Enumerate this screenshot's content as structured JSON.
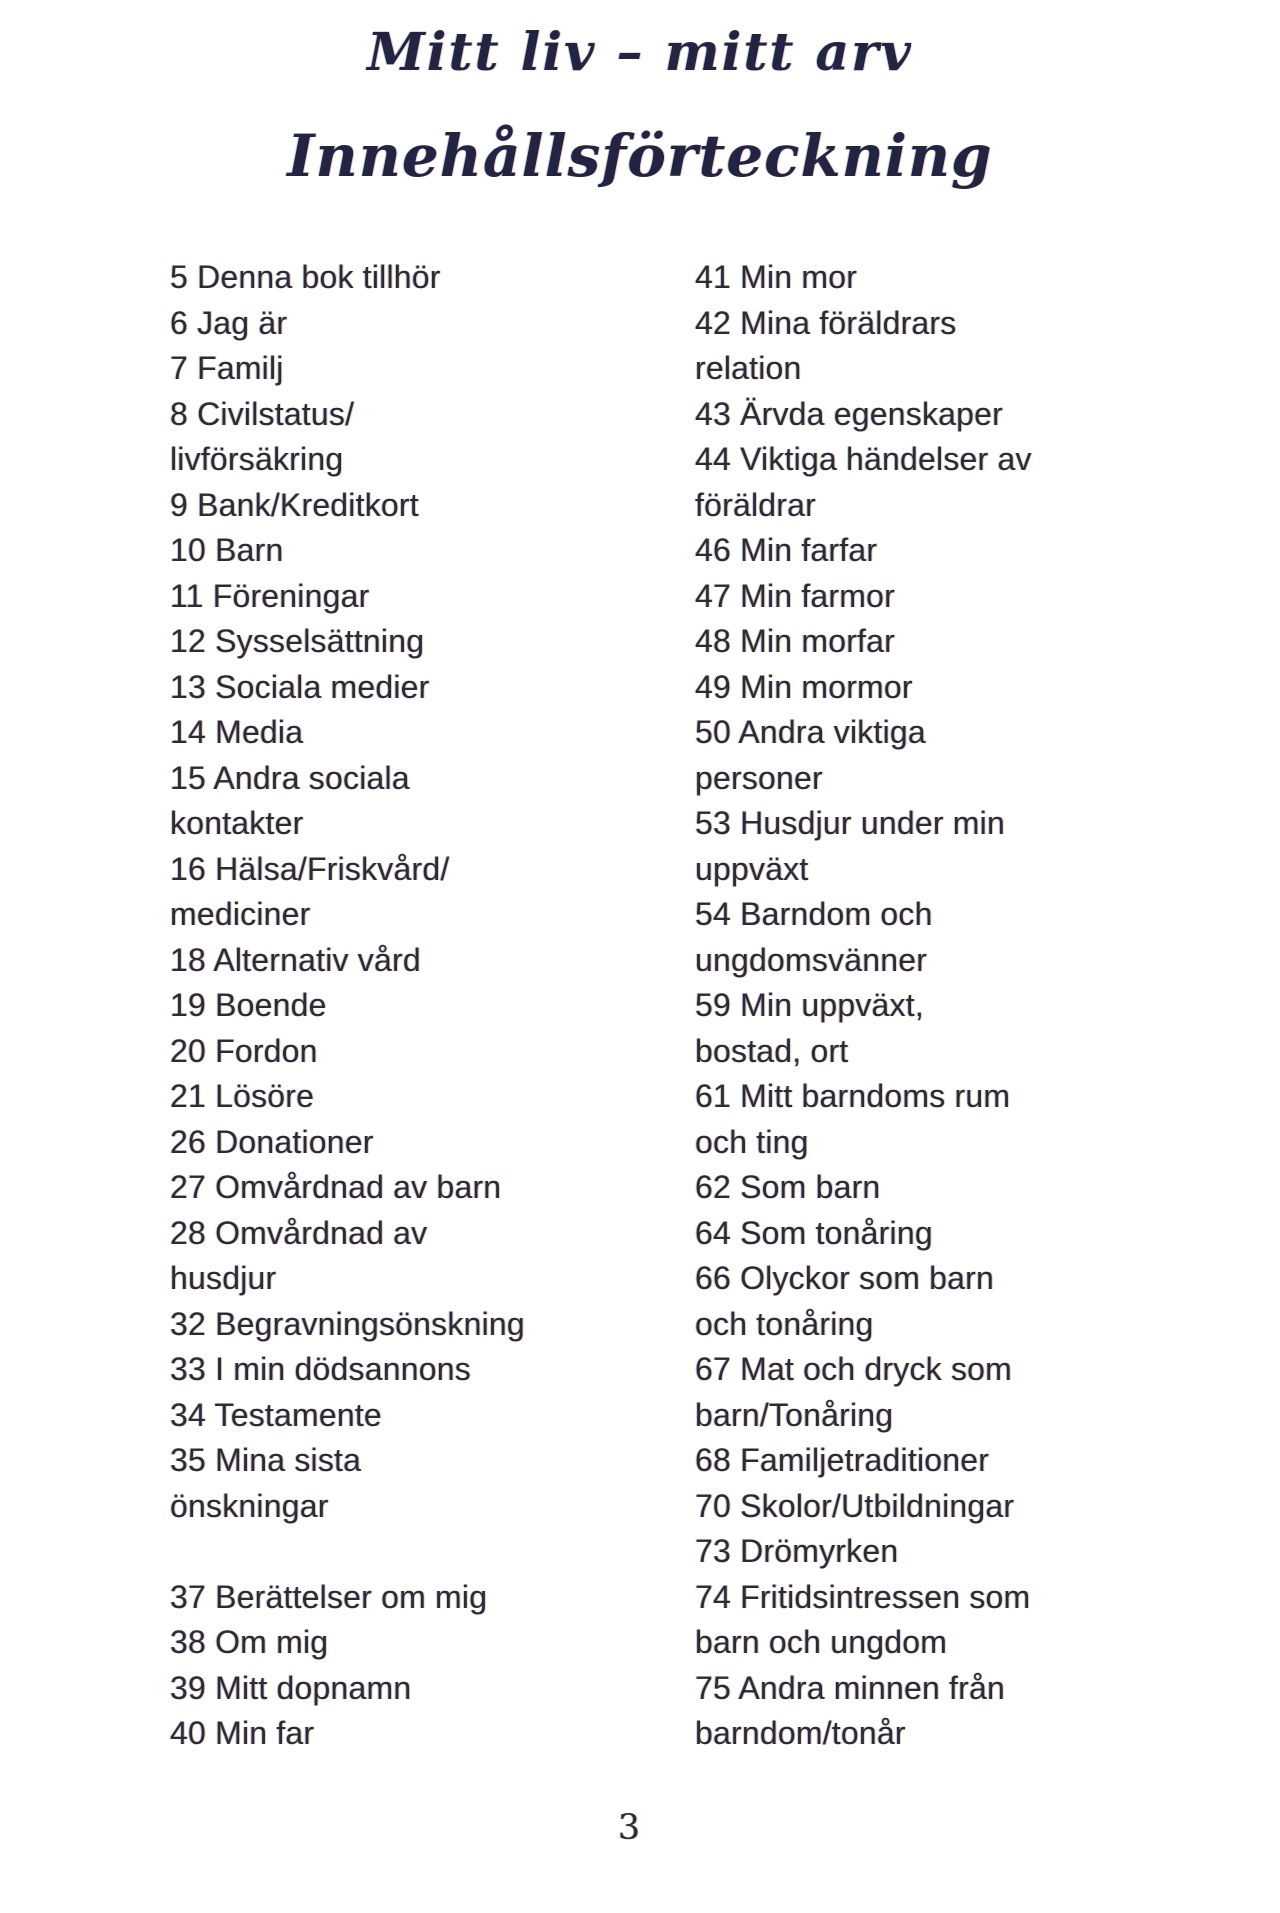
{
  "page": {
    "title": "Mitt liv – mitt arv",
    "heading": "Innehållsförteckning",
    "page_number": "3"
  },
  "colors": {
    "text-color": "#2c2a33",
    "heading-color": "#232342"
  },
  "toc": {
    "left_column": [
      "5 Denna bok tillhör",
      "6 Jag är",
      "7 Familj",
      "8 Civilstatus/",
      "livförsäkring",
      "9 Bank/Kreditkort",
      "10 Barn",
      "11 Föreningar",
      "12 Sysselsättning",
      "13 Sociala medier",
      "14 Media",
      "15 Andra sociala",
      "kontakter",
      "16 Hälsa/Friskvård/",
      "mediciner",
      "18 Alternativ vård",
      "19 Boende",
      "20 Fordon",
      "21 Lösöre",
      "26 Donationer",
      "27 Omvårdnad av barn",
      "28 Omvårdnad av",
      "husdjur",
      "32 Begravningsönskning",
      "33 I min dödsannons",
      "34 Testamente",
      "35 Mina sista",
      "önskningar",
      "",
      "37 Berättelser om mig",
      "38 Om mig",
      "39 Mitt dopnamn",
      "40 Min far"
    ],
    "right_column": [
      "41 Min mor",
      "42 Mina föräldrars",
      "relation",
      "43 Ärvda egenskaper",
      "44 Viktiga händelser av",
      "föräldrar",
      "46 Min farfar",
      "47 Min farmor",
      "48 Min morfar",
      "49 Min mormor",
      "50 Andra viktiga",
      "personer",
      "53 Husdjur under min",
      "uppväxt",
      "54 Barndom och",
      "ungdomsvänner",
      "59 Min uppväxt,",
      "bostad, ort",
      "61 Mitt barndoms rum",
      "och ting",
      "62 Som barn",
      "64 Som tonåring",
      "66 Olyckor som barn",
      "och tonåring",
      "67 Mat och dryck som",
      "barn/Tonåring",
      "68 Familjetraditioner",
      "70 Skolor/Utbildningar",
      "73 Drömyrken",
      "74 Fritidsintressen som",
      "barn och ungdom",
      "75 Andra minnen från",
      "barndom/tonår"
    ]
  }
}
